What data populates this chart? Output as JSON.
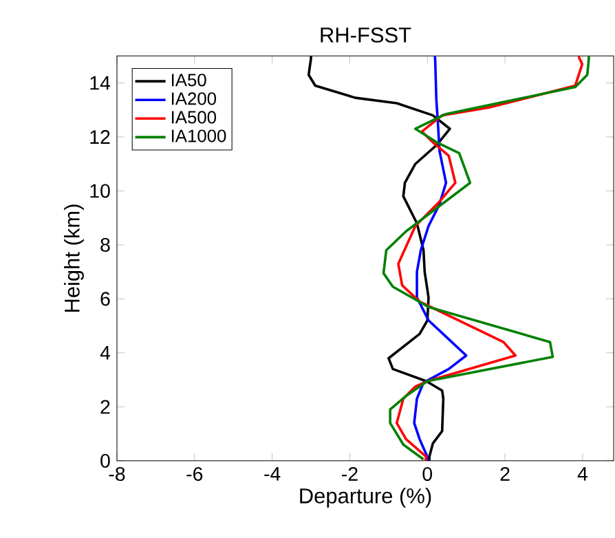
{
  "chart_data": {
    "type": "line",
    "title": "RH-FSST",
    "xlabel": "Departure (%)",
    "ylabel": "Height (km)",
    "xlim": [
      -8,
      4.8
    ],
    "ylim": [
      0,
      15
    ],
    "xticks": [
      -8,
      -6,
      -4,
      -2,
      0,
      2,
      4
    ],
    "yticks": [
      0,
      2,
      4,
      6,
      8,
      10,
      12,
      14
    ],
    "grid": false,
    "legend": "top left",
    "marker": "none",
    "line_style": "solid",
    "series": [
      {
        "name": "IA50",
        "color": "#000000",
        "x": [
          0.05,
          0.05,
          0.14,
          0.38,
          0.41,
          0.38,
          -0.03,
          -0.89,
          -1.0,
          -0.2,
          0,
          0.03,
          -0.07,
          -0.1,
          -0.27,
          -0.62,
          -0.58,
          -0.31,
          0.24,
          0.58,
          0.14,
          -0.79,
          -1.86,
          -2.89,
          -3.06,
          -3.0,
          -3.0
        ],
        "values": [
          0,
          0.15,
          0.64,
          1.1,
          2.3,
          2.6,
          2.95,
          3.4,
          3.8,
          4.7,
          5.2,
          6.05,
          7.0,
          7.8,
          8.8,
          9.8,
          10.3,
          11.0,
          11.7,
          12.3,
          12.8,
          13.25,
          13.45,
          13.9,
          14.3,
          14.9,
          15
        ]
      },
      {
        "name": "IA200",
        "color": "#0000ff",
        "x": [
          0,
          0,
          -0.2,
          -0.34,
          -0.27,
          -0.1,
          0.55,
          1.0,
          0.48,
          0.03,
          -0.27,
          -0.27,
          -0.17,
          0.03,
          0.31,
          0.48,
          0.31,
          0.28,
          0.23,
          0.2,
          0.19
        ],
        "values": [
          0,
          0.15,
          0.8,
          1.4,
          2.3,
          2.9,
          3.4,
          3.9,
          4.6,
          5.2,
          6.05,
          7.0,
          7.8,
          8.7,
          9.5,
          10.3,
          11.5,
          12.3,
          13.4,
          14.9,
          15
        ]
      },
      {
        "name": "IA500",
        "color": "#ff0000",
        "x": [
          -0.05,
          -0.03,
          -0.55,
          -0.79,
          -0.62,
          -0.31,
          0,
          2.27,
          1.96,
          -0.2,
          -0.65,
          -0.75,
          -0.31,
          0.31,
          0.72,
          0.55,
          0.14,
          -0.14,
          0.38,
          1.62,
          3.81,
          3.99,
          3.92,
          3.9
        ],
        "values": [
          0,
          0.15,
          0.8,
          1.4,
          2.3,
          2.75,
          2.95,
          3.9,
          4.4,
          5.9,
          6.5,
          7.3,
          8.7,
          9.6,
          10.3,
          11.3,
          11.8,
          12.2,
          12.8,
          13.1,
          13.9,
          14.7,
          14.9,
          15
        ]
      },
      {
        "name": "IA1000",
        "color": "#008000",
        "x": [
          -0.1,
          -0.62,
          -0.96,
          -0.96,
          -0.55,
          0,
          3.23,
          3.16,
          0.03,
          -0.89,
          -1.13,
          -1.06,
          -0.55,
          1.1,
          0.82,
          0.24,
          -0.31,
          0.48,
          2.65,
          3.81,
          4.12,
          4.16,
          4.16
        ],
        "values": [
          0.05,
          0.6,
          1.4,
          1.9,
          2.4,
          2.95,
          3.85,
          4.4,
          5.7,
          6.45,
          6.95,
          7.8,
          8.5,
          10.3,
          11.4,
          11.8,
          12.3,
          12.85,
          13.5,
          13.85,
          14.3,
          14.9,
          15
        ]
      }
    ]
  }
}
